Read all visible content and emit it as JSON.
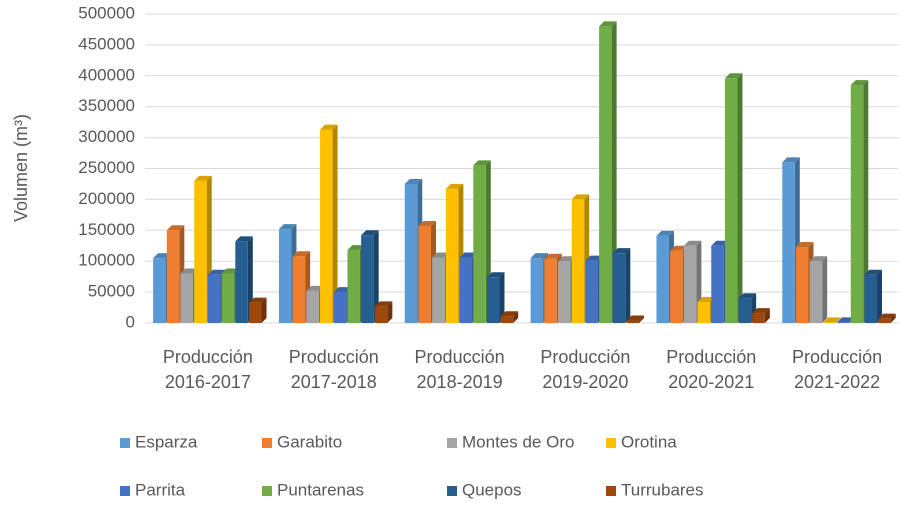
{
  "chart_data": {
    "type": "bar3d",
    "y_label": "Volumen (m³)",
    "categories": [
      "Producción 2016-2017",
      "Producción 2017-2018",
      "Producción 2018-2019",
      "Producción 2019-2020",
      "Producción 2020-2021",
      "Producción 2021-2022"
    ],
    "series": [
      {
        "name": "Esparza",
        "color": "#5b9bd5",
        "values": [
          105000,
          152000,
          225000,
          105000,
          141000,
          260000
        ]
      },
      {
        "name": "Garabito",
        "color": "#ed7d31",
        "values": [
          150000,
          108000,
          157000,
          104000,
          117000,
          123000
        ]
      },
      {
        "name": "Montes de Oro",
        "color": "#a5a5a5",
        "values": [
          80000,
          52000,
          106000,
          100000,
          125000,
          100000
        ]
      },
      {
        "name": "Orotina",
        "color": "#ffc000",
        "values": [
          230000,
          313000,
          217000,
          200000,
          34000,
          1000
        ]
      },
      {
        "name": "Parrita",
        "color": "#4472c4",
        "values": [
          78000,
          50000,
          106000,
          101000,
          125000,
          1000
        ]
      },
      {
        "name": "Puntarenas",
        "color": "#70ad47",
        "values": [
          80000,
          118000,
          255000,
          480000,
          396000,
          385000
        ]
      },
      {
        "name": "Quepos",
        "color": "#255e91",
        "values": [
          132000,
          142000,
          74000,
          113000,
          40000,
          78000
        ]
      },
      {
        "name": "Turrubares",
        "color": "#9e480e",
        "values": [
          33000,
          27000,
          11000,
          4000,
          16000,
          7000
        ]
      }
    ],
    "ylim": [
      0,
      500000
    ],
    "yticks": [
      0,
      50000,
      100000,
      150000,
      200000,
      250000,
      300000,
      350000,
      400000,
      450000,
      500000
    ],
    "grid": true
  }
}
